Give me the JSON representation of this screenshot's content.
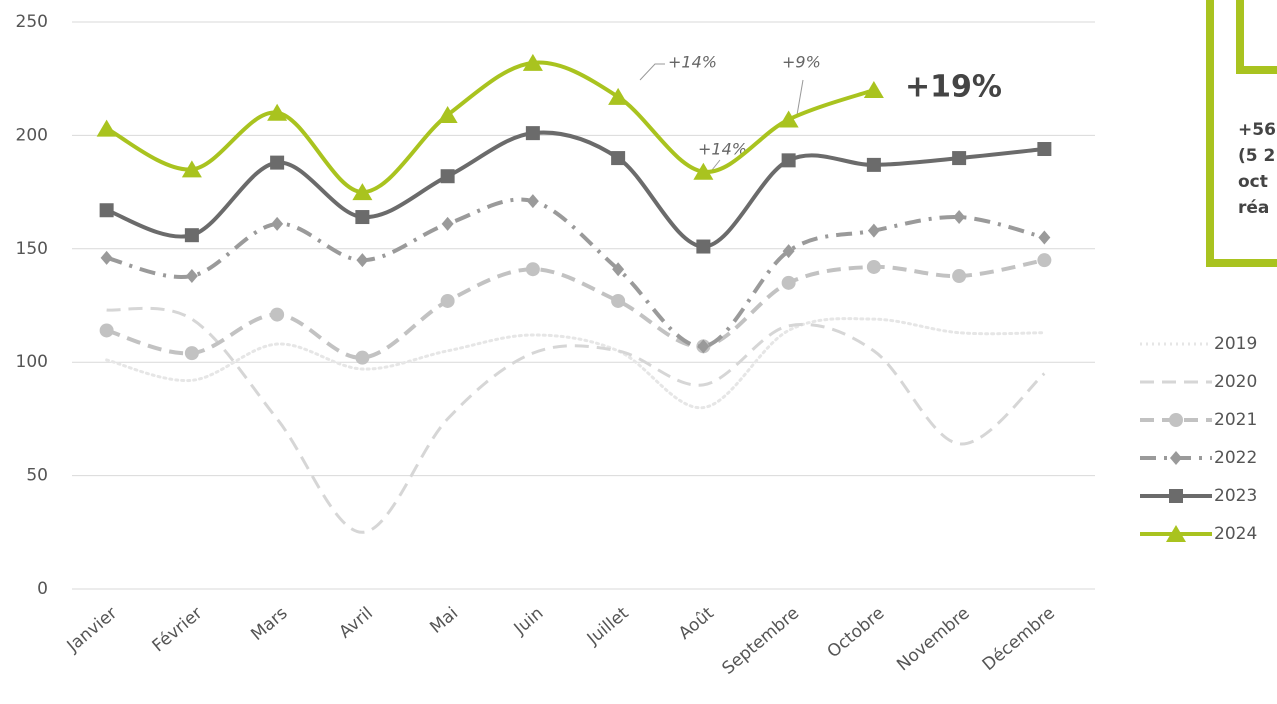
{
  "chart_data": {
    "type": "line",
    "categories": [
      "Janvier",
      "Février",
      "Mars",
      "Avril",
      "Mai",
      "Juin",
      "Juillet",
      "Août",
      "Septembre",
      "Octobre",
      "Novembre",
      "Décembre"
    ],
    "ylim": [
      0,
      250
    ],
    "yticks": [
      0,
      50,
      100,
      150,
      200,
      250
    ],
    "grid": true,
    "legend": "right",
    "series": [
      {
        "name": "2019",
        "color": "#e6e6e6",
        "style": "dotted",
        "marker": "none",
        "values": [
          101,
          92,
          108,
          97,
          105,
          112,
          105,
          80,
          114,
          119,
          113,
          113
        ]
      },
      {
        "name": "2020",
        "color": "#d6d6d6",
        "style": "dashed",
        "marker": "none",
        "values": [
          123,
          119,
          75,
          25,
          75,
          104,
          105,
          90,
          116,
          105,
          64,
          95
        ]
      },
      {
        "name": "2021",
        "color": "#c2c2c2",
        "style": "dashed",
        "marker": "circle",
        "values": [
          114,
          104,
          121,
          102,
          127,
          141,
          127,
          107,
          135,
          142,
          138,
          145
        ]
      },
      {
        "name": "2022",
        "color": "#9a9a9a",
        "style": "dashdot",
        "marker": "diamond",
        "values": [
          146,
          138,
          161,
          145,
          161,
          171,
          141,
          107,
          149,
          158,
          164,
          155
        ]
      },
      {
        "name": "2023",
        "color": "#6b6b6b",
        "style": "solid",
        "marker": "square",
        "values": [
          167,
          156,
          188,
          164,
          182,
          201,
          190,
          151,
          189,
          187,
          190,
          194
        ]
      },
      {
        "name": "2024",
        "color": "#a9c31f",
        "style": "solid",
        "marker": "triangle",
        "values": [
          203,
          185,
          210,
          175,
          209,
          232,
          217,
          184,
          207,
          220,
          null,
          null
        ]
      }
    ],
    "annotations": [
      "+14%",
      "+9%",
      "+14%",
      "+19%"
    ],
    "side_box": [
      "+56",
      "(5 2",
      "oct",
      "réa"
    ]
  }
}
